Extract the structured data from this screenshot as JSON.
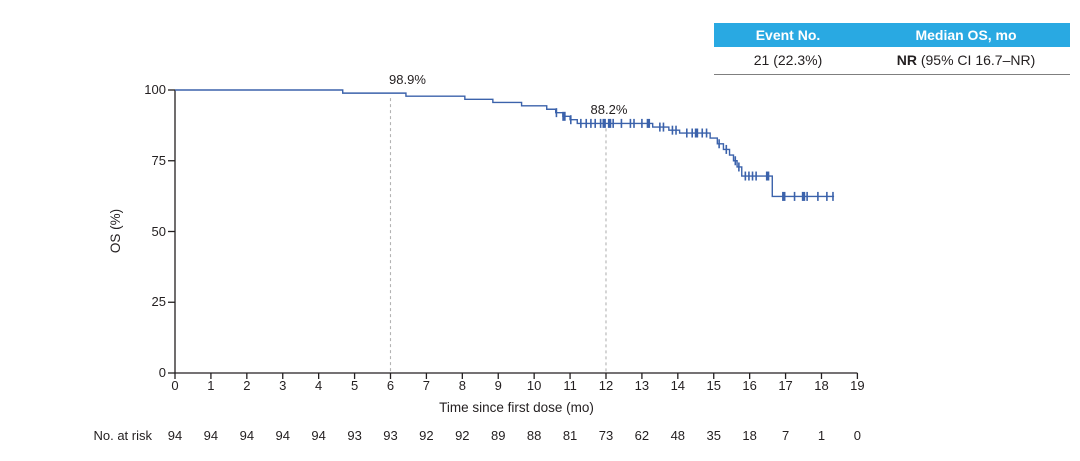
{
  "summary_table": {
    "headers": [
      "Event No.",
      "Median OS, mo"
    ],
    "row": {
      "event_no": "21 (22.3%)",
      "median_os_bold": "NR",
      "median_os_rest": " (95% CI 16.7–NR)"
    },
    "header_bg_color": "#29a9e2"
  },
  "chart_data": {
    "type": "line",
    "subtype": "kaplan-meier-step",
    "title": "",
    "xlabel": "Time since first dose (mo)",
    "ylabel": "OS (%)",
    "xlim": [
      0,
      19
    ],
    "ylim": [
      0,
      100
    ],
    "x_ticks": [
      0,
      1,
      2,
      3,
      4,
      5,
      6,
      7,
      8,
      9,
      10,
      11,
      12,
      13,
      14,
      15,
      16,
      17,
      18,
      19
    ],
    "y_ticks": [
      0,
      25,
      50,
      75,
      100
    ],
    "grid": false,
    "legend": "none",
    "line_color": "#3b62ab",
    "axis_color": "#231f20",
    "ref_line_color": "#b3b3b3",
    "series": [
      {
        "name": "OS",
        "steps": [
          [
            0,
            100
          ],
          [
            4.67,
            98.9
          ],
          [
            6.43,
            97.8
          ],
          [
            8.07,
            96.7
          ],
          [
            8.85,
            95.6
          ],
          [
            9.65,
            94.4
          ],
          [
            10.35,
            93.2
          ],
          [
            10.6,
            92.0
          ],
          [
            10.8,
            90.7
          ],
          [
            11.0,
            89.5
          ],
          [
            11.2,
            88.2
          ],
          [
            13.3,
            86.9
          ],
          [
            13.75,
            85.8
          ],
          [
            14.05,
            84.8
          ],
          [
            14.9,
            83.0
          ],
          [
            15.1,
            81.0
          ],
          [
            15.27,
            79.0
          ],
          [
            15.44,
            77.0
          ],
          [
            15.55,
            75.0
          ],
          [
            15.65,
            72.8
          ],
          [
            15.78,
            69.6
          ],
          [
            16.63,
            62.4
          ]
        ],
        "end_t": 18.35,
        "censors": [
          [
            10.62,
            92.0,
            0
          ],
          [
            10.83,
            90.7,
            1
          ],
          [
            11.02,
            89.5,
            0
          ],
          [
            11.3,
            88.2,
            0
          ],
          [
            11.45,
            88.2,
            0
          ],
          [
            11.58,
            88.2,
            0
          ],
          [
            11.7,
            88.2,
            0
          ],
          [
            11.85,
            88.2,
            0
          ],
          [
            11.95,
            88.2,
            1
          ],
          [
            12.1,
            88.2,
            1
          ],
          [
            12.2,
            88.2,
            0
          ],
          [
            12.43,
            88.2,
            0
          ],
          [
            12.68,
            88.2,
            0
          ],
          [
            12.78,
            88.2,
            0
          ],
          [
            13.0,
            88.2,
            0
          ],
          [
            13.18,
            88.2,
            1
          ],
          [
            13.5,
            86.9,
            0
          ],
          [
            13.6,
            86.9,
            0
          ],
          [
            13.85,
            85.8,
            0
          ],
          [
            13.95,
            85.8,
            0
          ],
          [
            14.25,
            84.8,
            0
          ],
          [
            14.4,
            84.8,
            0
          ],
          [
            14.52,
            84.8,
            1
          ],
          [
            14.68,
            84.8,
            0
          ],
          [
            14.8,
            84.8,
            0
          ],
          [
            15.15,
            81.0,
            0
          ],
          [
            15.35,
            79.0,
            0
          ],
          [
            15.6,
            75.0,
            0
          ],
          [
            15.7,
            72.8,
            0
          ],
          [
            15.88,
            69.6,
            0
          ],
          [
            15.98,
            69.6,
            0
          ],
          [
            16.08,
            69.6,
            0
          ],
          [
            16.18,
            69.6,
            0
          ],
          [
            16.5,
            69.6,
            1
          ],
          [
            16.95,
            62.4,
            1
          ],
          [
            17.25,
            62.4,
            0
          ],
          [
            17.5,
            62.4,
            1
          ],
          [
            17.6,
            62.4,
            0
          ],
          [
            17.9,
            62.4,
            0
          ],
          [
            18.15,
            62.4,
            0
          ],
          [
            18.32,
            62.4,
            0
          ]
        ]
      }
    ],
    "ref_lines": [
      {
        "t": 6,
        "top_os": 98.9
      },
      {
        "t": 12,
        "top_os": 88.2
      }
    ],
    "annotations": [
      {
        "t": 6,
        "os": 98.9,
        "label": "98.9%",
        "dx": 17
      },
      {
        "t": 12,
        "os": 88.2,
        "label": "88.2%",
        "dx": 3
      }
    ],
    "risk_table": {
      "label": "No. at risk",
      "values": [
        94,
        94,
        94,
        94,
        94,
        93,
        93,
        92,
        92,
        89,
        88,
        81,
        73,
        62,
        48,
        35,
        18,
        7,
        1,
        0
      ]
    }
  }
}
